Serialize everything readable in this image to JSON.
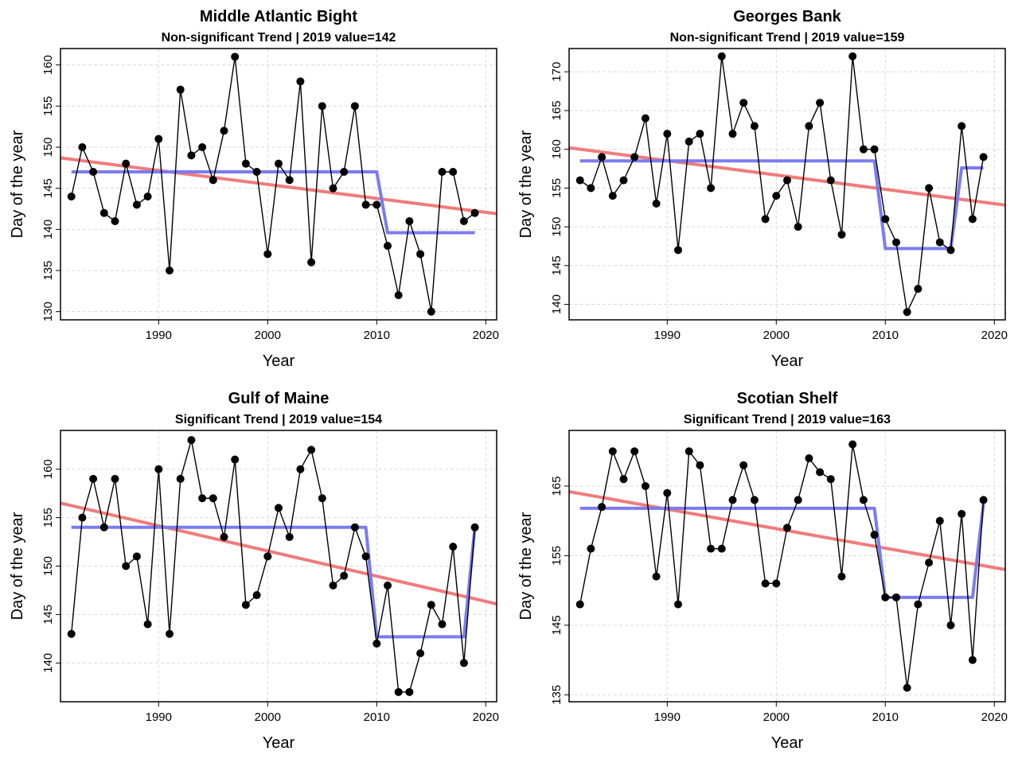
{
  "colors": {
    "trend": "#f07b7b",
    "step": "#7b7bf0",
    "points": "#000000",
    "grid": "#d9d9d9"
  },
  "chart_data": [
    {
      "type": "line",
      "title": "Middle Atlantic Bight",
      "subtitle": "Non-significant Trend | 2019 value=142",
      "xlabel": "Year",
      "ylabel": "Day of the year",
      "xlim": [
        1981,
        2021
      ],
      "ylim": [
        129,
        162
      ],
      "xticks": [
        1990,
        2000,
        2010,
        2020
      ],
      "yticks": [
        130,
        135,
        140,
        145,
        150,
        155,
        160
      ],
      "x": [
        1982,
        1983,
        1984,
        1985,
        1986,
        1987,
        1988,
        1989,
        1990,
        1991,
        1992,
        1993,
        1994,
        1995,
        1996,
        1997,
        1998,
        1999,
        2000,
        2001,
        2002,
        2003,
        2004,
        2005,
        2006,
        2007,
        2008,
        2009,
        2010,
        2011,
        2012,
        2013,
        2014,
        2015,
        2016,
        2017,
        2018,
        2019
      ],
      "values": [
        144,
        150,
        147,
        142,
        141,
        148,
        143,
        144,
        151,
        135,
        157,
        149,
        150,
        146,
        152,
        161,
        148,
        147,
        137,
        148,
        146,
        158,
        136,
        155,
        145,
        147,
        155,
        143,
        143,
        138,
        132,
        141,
        137,
        130,
        147,
        147,
        141,
        142
      ],
      "trend": {
        "x": [
          1981,
          2021
        ],
        "y": [
          148.7,
          141.9
        ]
      },
      "step": {
        "x": [
          1982,
          2010,
          2011,
          2019
        ],
        "y": [
          147.0,
          147.0,
          139.6,
          139.6
        ]
      }
    },
    {
      "type": "line",
      "title": "Georges Bank",
      "subtitle": "Non-significant Trend | 2019 value=159",
      "xlabel": "Year",
      "ylabel": "Day of the year",
      "xlim": [
        1981,
        2021
      ],
      "ylim": [
        138,
        173
      ],
      "xticks": [
        1990,
        2000,
        2010,
        2020
      ],
      "yticks": [
        140,
        145,
        150,
        155,
        160,
        165,
        170
      ],
      "x": [
        1982,
        1983,
        1984,
        1985,
        1986,
        1987,
        1988,
        1989,
        1990,
        1991,
        1992,
        1993,
        1994,
        1995,
        1996,
        1997,
        1998,
        1999,
        2000,
        2001,
        2002,
        2003,
        2004,
        2005,
        2006,
        2007,
        2008,
        2009,
        2010,
        2011,
        2012,
        2013,
        2014,
        2015,
        2016,
        2017,
        2018,
        2019
      ],
      "values": [
        156,
        155,
        159,
        154,
        156,
        159,
        164,
        153,
        162,
        147,
        161,
        162,
        155,
        172,
        162,
        166,
        163,
        151,
        154,
        156,
        150,
        163,
        166,
        156,
        149,
        172,
        160,
        160,
        151,
        148,
        139,
        142,
        155,
        148,
        147,
        163,
        151,
        159
      ],
      "trend": {
        "x": [
          1981,
          2021
        ],
        "y": [
          160.2,
          152.8
        ]
      },
      "step": {
        "x": [
          1982,
          2009,
          2010,
          2016,
          2017,
          2019
        ],
        "y": [
          158.5,
          158.5,
          147.2,
          147.2,
          157.6,
          157.6
        ]
      }
    },
    {
      "type": "line",
      "title": "Gulf of Maine",
      "subtitle": "Significant Trend | 2019 value=154",
      "xlabel": "Year",
      "ylabel": "Day of the year",
      "xlim": [
        1981,
        2021
      ],
      "ylim": [
        136,
        164
      ],
      "xticks": [
        1990,
        2000,
        2010,
        2020
      ],
      "yticks": [
        140,
        145,
        150,
        155,
        160
      ],
      "x": [
        1982,
        1983,
        1984,
        1985,
        1986,
        1987,
        1988,
        1989,
        1990,
        1991,
        1992,
        1993,
        1994,
        1995,
        1996,
        1997,
        1998,
        1999,
        2000,
        2001,
        2002,
        2003,
        2004,
        2005,
        2006,
        2007,
        2008,
        2009,
        2010,
        2011,
        2012,
        2013,
        2014,
        2015,
        2016,
        2017,
        2018,
        2019
      ],
      "values": [
        143,
        155,
        159,
        154,
        159,
        150,
        151,
        144,
        160,
        143,
        159,
        163,
        157,
        157,
        153,
        161,
        146,
        147,
        151,
        156,
        153,
        160,
        162,
        157,
        148,
        149,
        154,
        151,
        142,
        148,
        137,
        137,
        141,
        146,
        144,
        152,
        140,
        154
      ],
      "trend": {
        "x": [
          1981,
          2021
        ],
        "y": [
          156.5,
          146.1
        ]
      },
      "step": {
        "x": [
          1982,
          2009,
          2010,
          2018,
          2019
        ],
        "y": [
          154.0,
          154.0,
          142.7,
          142.7,
          154.0
        ]
      }
    },
    {
      "type": "line",
      "title": "Scotian Shelf",
      "subtitle": "Significant Trend | 2019 value=163",
      "xlabel": "Year",
      "ylabel": "Day of the year",
      "xlim": [
        1981,
        2021
      ],
      "ylim": [
        134,
        173
      ],
      "xticks": [
        1990,
        2000,
        2010,
        2020
      ],
      "yticks": [
        135,
        145,
        155,
        165
      ],
      "x": [
        1982,
        1983,
        1984,
        1985,
        1986,
        1987,
        1988,
        1989,
        1990,
        1991,
        1992,
        1993,
        1994,
        1995,
        1996,
        1997,
        1998,
        1999,
        2000,
        2001,
        2002,
        2003,
        2004,
        2005,
        2006,
        2007,
        2008,
        2009,
        2010,
        2011,
        2012,
        2013,
        2014,
        2015,
        2016,
        2017,
        2018,
        2019
      ],
      "values": [
        148,
        156,
        162,
        170,
        166,
        170,
        165,
        152,
        164,
        148,
        170,
        168,
        156,
        156,
        163,
        168,
        163,
        151,
        151,
        159,
        163,
        169,
        167,
        166,
        152,
        171,
        163,
        158,
        149,
        149,
        136,
        148,
        154,
        160,
        145,
        161,
        140,
        163
      ],
      "trend": {
        "x": [
          1981,
          2021
        ],
        "y": [
          164.2,
          153.0
        ]
      },
      "step": {
        "x": [
          1982,
          2009,
          2010,
          2018,
          2019
        ],
        "y": [
          161.8,
          161.8,
          149.0,
          149.0,
          162.5
        ]
      }
    }
  ]
}
